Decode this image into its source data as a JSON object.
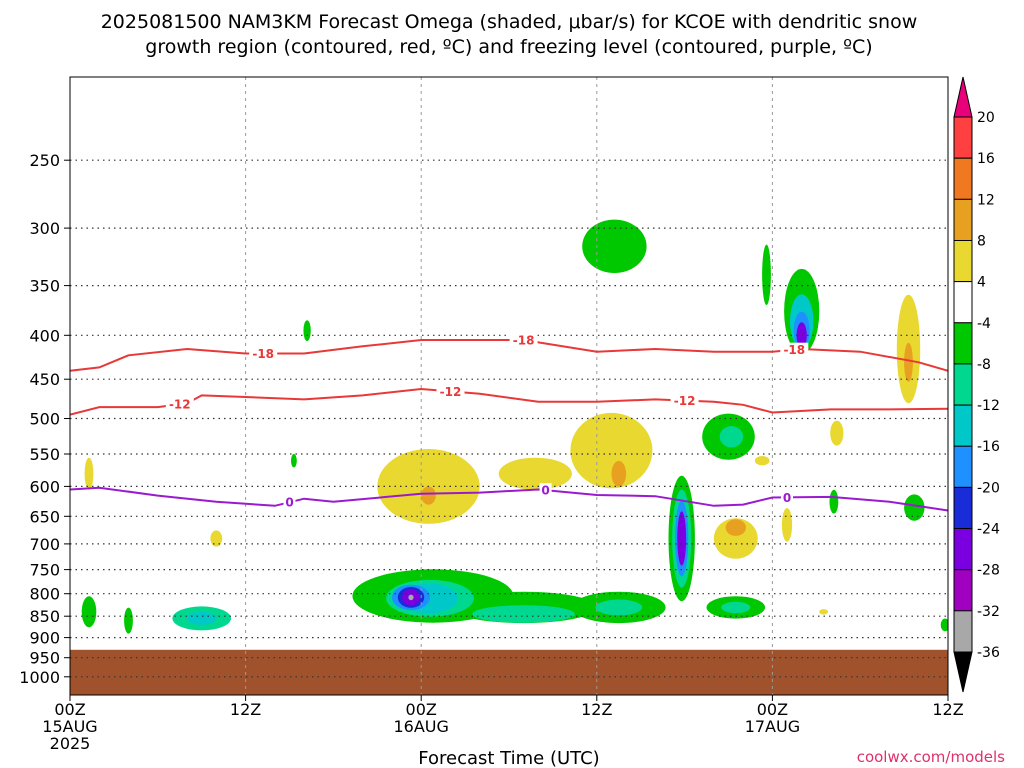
{
  "title_line1": "2025081500 NAM3KM Forecast Omega (shaded, μbar/s) for KCOE with dendritic snow",
  "title_line2": "growth region (contoured, red, ºC) and freezing level (contoured, purple, ºC)",
  "credit": "coolwx.com/models",
  "chart_data": {
    "type": "heatmap",
    "title": "2025081500 NAM3KM Forecast Omega (shaded, μbar/s) for KCOE with dendritic snow growth region (contoured, red, ºC) and freezing level (contoured, purple, ºC)",
    "xlabel": "Forecast Time (UTC)",
    "ylabel": "",
    "x_unit": "forecast hours from 2025-08-15 00Z",
    "xlim": [
      0,
      60
    ],
    "ylim_hPa": [
      1050,
      200
    ],
    "y_scale": "log-pressure",
    "x_ticks": [
      {
        "hour": 0,
        "label": "00Z",
        "sub1": "15AUG",
        "sub2": "2025"
      },
      {
        "hour": 12,
        "label": "12Z",
        "sub1": "",
        "sub2": ""
      },
      {
        "hour": 24,
        "label": "00Z",
        "sub1": "16AUG",
        "sub2": ""
      },
      {
        "hour": 36,
        "label": "12Z",
        "sub1": "",
        "sub2": ""
      },
      {
        "hour": 48,
        "label": "00Z",
        "sub1": "17AUG",
        "sub2": ""
      },
      {
        "hour": 60,
        "label": "12Z",
        "sub1": "",
        "sub2": ""
      }
    ],
    "y_ticks": [
      {
        "hPa": 250,
        "label": "250"
      },
      {
        "hPa": 300,
        "label": "300"
      },
      {
        "hPa": 350,
        "label": "350"
      },
      {
        "hPa": 400,
        "label": "400"
      },
      {
        "hPa": 450,
        "label": "450"
      },
      {
        "hPa": 500,
        "label": "500"
      },
      {
        "hPa": 550,
        "label": "550"
      },
      {
        "hPa": 600,
        "label": "600"
      },
      {
        "hPa": 650,
        "label": "650"
      },
      {
        "hPa": 700,
        "label": "700"
      },
      {
        "hPa": 750,
        "label": "750"
      },
      {
        "hPa": 800,
        "label": "800"
      },
      {
        "hPa": 850,
        "label": "850"
      },
      {
        "hPa": 900,
        "label": "900"
      },
      {
        "hPa": 950,
        "label": "950"
      },
      {
        "hPa": 1000,
        "label": "1000"
      }
    ],
    "grid": true,
    "ground_top_hPa": 930,
    "ground_color": "#a0522d",
    "colorbar": {
      "position": "right",
      "levels": [
        -36,
        -32,
        -28,
        -24,
        -20,
        -16,
        -12,
        -8,
        -4,
        4,
        8,
        12,
        16,
        20
      ],
      "labels": [
        "20",
        "16",
        "12",
        "8",
        "4",
        "-4",
        "-8",
        "-12",
        "-16",
        "-20",
        "-24",
        "-28",
        "-32",
        "-36"
      ],
      "colors_top_to_bottom": [
        "#e8007a",
        "#ff4040",
        "#f07820",
        "#e8a020",
        "#e8d830",
        "#ffffff",
        "#00c800",
        "#00d890",
        "#00c8c8",
        "#1e90ff",
        "#1a2bd8",
        "#7a00e0",
        "#a000c0",
        "#a8a8a8",
        "#000000"
      ]
    },
    "omega_cells": [
      {
        "hour": 1.3,
        "hPa": 840,
        "hw": 0.5,
        "dp": 70,
        "value": -4
      },
      {
        "hour": 4.0,
        "hPa": 860,
        "hw": 0.3,
        "dp": 60,
        "value": -4
      },
      {
        "hour": 9.0,
        "hPa": 855,
        "hw": 2.0,
        "dp": 55,
        "value": -8
      },
      {
        "hour": 9.0,
        "hPa": 855,
        "hw": 1.0,
        "dp": 30,
        "value": -12
      },
      {
        "hour": 16.2,
        "hPa": 395,
        "hw": 0.25,
        "dp": 22,
        "value": -4
      },
      {
        "hour": 15.3,
        "hPa": 560,
        "hw": 0.2,
        "dp": 20,
        "value": -4
      },
      {
        "hour": 24.8,
        "hPa": 805,
        "hw": 5.5,
        "dp": 115,
        "value": -4
      },
      {
        "hour": 24.6,
        "hPa": 810,
        "hw": 3.0,
        "dp": 80,
        "value": -8
      },
      {
        "hour": 24.5,
        "hPa": 810,
        "hw": 2.0,
        "dp": 65,
        "value": -12
      },
      {
        "hour": 23.3,
        "hPa": 808,
        "hw": 1.3,
        "dp": 55,
        "value": -16
      },
      {
        "hour": 23.3,
        "hPa": 808,
        "hw": 0.9,
        "dp": 45,
        "value": -20
      },
      {
        "hour": 23.3,
        "hPa": 808,
        "hw": 0.6,
        "dp": 35,
        "value": -24
      },
      {
        "hour": 23.3,
        "hPa": 808,
        "hw": 0.4,
        "dp": 25,
        "value": -28
      },
      {
        "hour": 23.3,
        "hPa": 808,
        "hw": 0.18,
        "dp": 12,
        "value": -32
      },
      {
        "hour": 31.0,
        "hPa": 830,
        "hw": 5.0,
        "dp": 70,
        "value": -4
      },
      {
        "hour": 31.0,
        "hPa": 845,
        "hw": 3.5,
        "dp": 40,
        "value": -8
      },
      {
        "hour": 37.5,
        "hPa": 830,
        "hw": 3.2,
        "dp": 70,
        "value": -4
      },
      {
        "hour": 37.5,
        "hPa": 830,
        "hw": 1.6,
        "dp": 35,
        "value": -8
      },
      {
        "hour": 37.2,
        "hPa": 315,
        "hw": 2.2,
        "dp": 45,
        "value": -4
      },
      {
        "hour": 41.8,
        "hPa": 690,
        "hw": 0.9,
        "dp": 230,
        "value": -4
      },
      {
        "hour": 41.8,
        "hPa": 690,
        "hw": 0.65,
        "dp": 180,
        "value": -8
      },
      {
        "hour": 41.8,
        "hPa": 690,
        "hw": 0.45,
        "dp": 140,
        "value": -16
      },
      {
        "hour": 41.8,
        "hPa": 690,
        "hw": 0.3,
        "dp": 100,
        "value": -24
      },
      {
        "hour": 45.0,
        "hPa": 525,
        "hw": 1.8,
        "dp": 65,
        "value": -4
      },
      {
        "hour": 45.2,
        "hPa": 525,
        "hw": 0.8,
        "dp": 30,
        "value": -8
      },
      {
        "hour": 45.5,
        "hPa": 830,
        "hw": 2.0,
        "dp": 50,
        "value": -4
      },
      {
        "hour": 45.5,
        "hPa": 830,
        "hw": 1.0,
        "dp": 25,
        "value": -8
      },
      {
        "hour": 50.0,
        "hPa": 375,
        "hw": 1.2,
        "dp": 85,
        "value": -4
      },
      {
        "hour": 50.0,
        "hPa": 385,
        "hw": 0.8,
        "dp": 55,
        "value": -12
      },
      {
        "hour": 50.0,
        "hPa": 395,
        "hw": 0.55,
        "dp": 40,
        "value": -16
      },
      {
        "hour": 50.0,
        "hPa": 400,
        "hw": 0.35,
        "dp": 28,
        "value": -24
      },
      {
        "hour": 47.6,
        "hPa": 340,
        "hw": 0.3,
        "dp": 55,
        "value": -4
      },
      {
        "hour": 52.2,
        "hPa": 625,
        "hw": 0.3,
        "dp": 40,
        "value": -4
      },
      {
        "hour": 57.7,
        "hPa": 635,
        "hw": 0.7,
        "dp": 45,
        "value": -4
      },
      {
        "hour": 59.8,
        "hPa": 870,
        "hw": 0.3,
        "dp": 30,
        "value": -4
      },
      {
        "hour": 1.3,
        "hPa": 580,
        "hw": 0.3,
        "dp": 50,
        "value": 4
      },
      {
        "hour": 10.0,
        "hPa": 690,
        "hw": 0.4,
        "dp": 30,
        "value": 4
      },
      {
        "hour": 24.5,
        "hPa": 600,
        "hw": 3.5,
        "dp": 120,
        "value": 4
      },
      {
        "hour": 24.5,
        "hPa": 615,
        "hw": 0.5,
        "dp": 30,
        "value": 8
      },
      {
        "hour": 31.8,
        "hPa": 580,
        "hw": 2.5,
        "dp": 50,
        "value": 4
      },
      {
        "hour": 37.0,
        "hPa": 545,
        "hw": 2.8,
        "dp": 110,
        "value": 4
      },
      {
        "hour": 37.5,
        "hPa": 580,
        "hw": 0.5,
        "dp": 40,
        "value": 8
      },
      {
        "hour": 45.5,
        "hPa": 690,
        "hw": 1.5,
        "dp": 75,
        "value": 4
      },
      {
        "hour": 45.5,
        "hPa": 670,
        "hw": 0.7,
        "dp": 30,
        "value": 8
      },
      {
        "hour": 49.0,
        "hPa": 665,
        "hw": 0.35,
        "dp": 60,
        "value": 4
      },
      {
        "hour": 52.4,
        "hPa": 520,
        "hw": 0.45,
        "dp": 35,
        "value": 4
      },
      {
        "hour": 47.3,
        "hPa": 560,
        "hw": 0.5,
        "dp": 14,
        "value": 4
      },
      {
        "hour": 51.5,
        "hPa": 840,
        "hw": 0.3,
        "dp": 12,
        "value": 4
      },
      {
        "hour": 57.3,
        "hPa": 415,
        "hw": 0.8,
        "dp": 120,
        "value": 4
      },
      {
        "hour": 57.3,
        "hPa": 430,
        "hw": 0.3,
        "dp": 45,
        "value": 8
      }
    ],
    "series": [
      {
        "name": "-18",
        "color": "#e83838",
        "x": [
          0,
          2,
          4,
          8,
          12,
          16,
          20,
          24,
          28,
          29,
          31,
          36,
          40,
          44,
          48,
          50,
          54,
          58,
          60
        ],
        "y": [
          440,
          436,
          422,
          415,
          420,
          420,
          412,
          405,
          405,
          405,
          405,
          418,
          415,
          418,
          418,
          415,
          418,
          430,
          440
        ],
        "labels": [
          {
            "x": 13.2,
            "text": "-18"
          },
          {
            "x": 31.0,
            "text": "-18"
          },
          {
            "x": 49.5,
            "text": "-18"
          }
        ]
      },
      {
        "name": "-12",
        "color": "#e83838",
        "x": [
          0,
          2,
          6,
          8,
          9,
          12,
          16,
          20,
          24,
          28,
          32,
          36,
          40,
          44,
          46,
          48,
          52,
          56,
          60
        ],
        "y": [
          495,
          485,
          485,
          480,
          470,
          472,
          475,
          470,
          462,
          468,
          478,
          478,
          475,
          478,
          482,
          492,
          488,
          488,
          487
        ],
        "labels": [
          {
            "x": 7.5,
            "text": "-12"
          },
          {
            "x": 26.0,
            "text": "-12"
          },
          {
            "x": 42.0,
            "text": "-12"
          }
        ]
      },
      {
        "name": "0",
        "color": "#9a1ad0",
        "x": [
          0,
          2,
          6,
          10,
          14,
          16,
          18,
          24,
          28,
          32,
          36,
          40,
          44,
          46,
          48,
          52,
          56,
          60
        ],
        "y": [
          605,
          602,
          615,
          625,
          632,
          620,
          625,
          612,
          610,
          605,
          614,
          616,
          632,
          630,
          618,
          617,
          625,
          640
        ],
        "labels": [
          {
            "x": 15.0,
            "text": "0"
          },
          {
            "x": 32.5,
            "text": "0"
          },
          {
            "x": 49.0,
            "text": "0"
          }
        ]
      }
    ]
  }
}
